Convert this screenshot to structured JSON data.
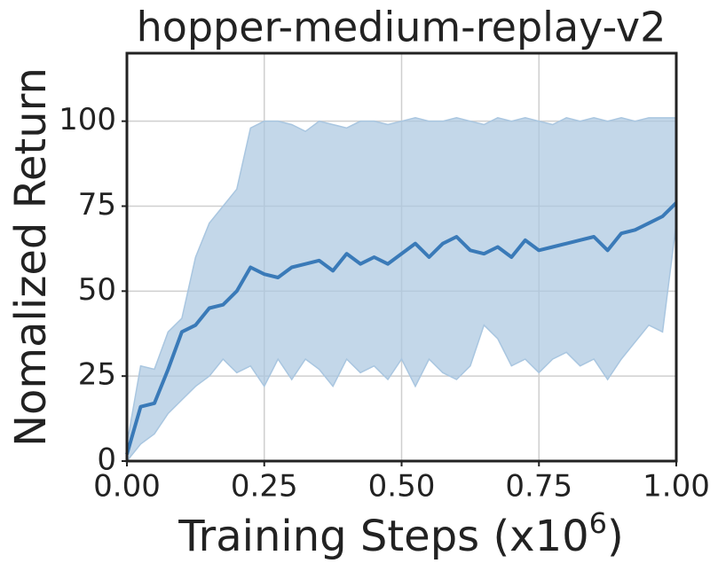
{
  "chart_data": {
    "type": "line-band",
    "title": "hopper-medium-replay-v2",
    "xlabel": [
      "Training Steps (x10",
      "6",
      ")"
    ],
    "ylabel": "Nomalized Return",
    "x": [
      0,
      0.025,
      0.05,
      0.075,
      0.1,
      0.125,
      0.15,
      0.175,
      0.2,
      0.225,
      0.25,
      0.275,
      0.3,
      0.325,
      0.35,
      0.375,
      0.4,
      0.425,
      0.45,
      0.475,
      0.5,
      0.525,
      0.55,
      0.575,
      0.6,
      0.625,
      0.65,
      0.675,
      0.7,
      0.725,
      0.75,
      0.775,
      0.8,
      0.825,
      0.85,
      0.875,
      0.9,
      0.925,
      0.95,
      0.975,
      1.0
    ],
    "values": [
      2,
      16,
      17,
      27,
      38,
      40,
      45,
      46,
      50,
      57,
      55,
      54,
      57,
      58,
      59,
      56,
      61,
      58,
      60,
      58,
      61,
      64,
      60,
      64,
      66,
      62,
      61,
      63,
      60,
      65,
      62,
      63,
      64,
      65,
      66,
      62,
      67,
      68,
      70,
      72,
      76
    ],
    "upper": [
      5,
      28,
      27,
      38,
      42,
      60,
      70,
      75,
      80,
      98,
      100,
      100,
      99,
      97,
      100,
      99,
      98,
      100,
      100,
      99,
      100,
      101,
      100,
      100,
      101,
      100,
      99,
      101,
      100,
      101,
      100,
      99,
      101,
      100,
      101,
      100,
      101,
      100,
      101,
      101,
      101
    ],
    "lower": [
      0,
      5,
      8,
      14,
      18,
      22,
      25,
      30,
      26,
      28,
      22,
      30,
      24,
      30,
      27,
      22,
      30,
      26,
      28,
      24,
      30,
      22,
      30,
      26,
      24,
      28,
      40,
      36,
      28,
      30,
      26,
      30,
      32,
      28,
      30,
      24,
      30,
      35,
      40,
      38,
      70
    ],
    "color": "#3a7ab8",
    "band_color": "#a9c6e0",
    "xlim": [
      0,
      1.0
    ],
    "ylim": [
      0,
      120
    ],
    "xticks": [
      {
        "value": 0,
        "label": "0.00"
      },
      {
        "value": 0.25,
        "label": "0.25"
      },
      {
        "value": 0.5,
        "label": "0.50"
      },
      {
        "value": 0.75,
        "label": "0.75"
      },
      {
        "value": 1.0,
        "label": "1.00"
      }
    ],
    "yticks": [
      0,
      25,
      50,
      75,
      100
    ],
    "grid": true
  }
}
